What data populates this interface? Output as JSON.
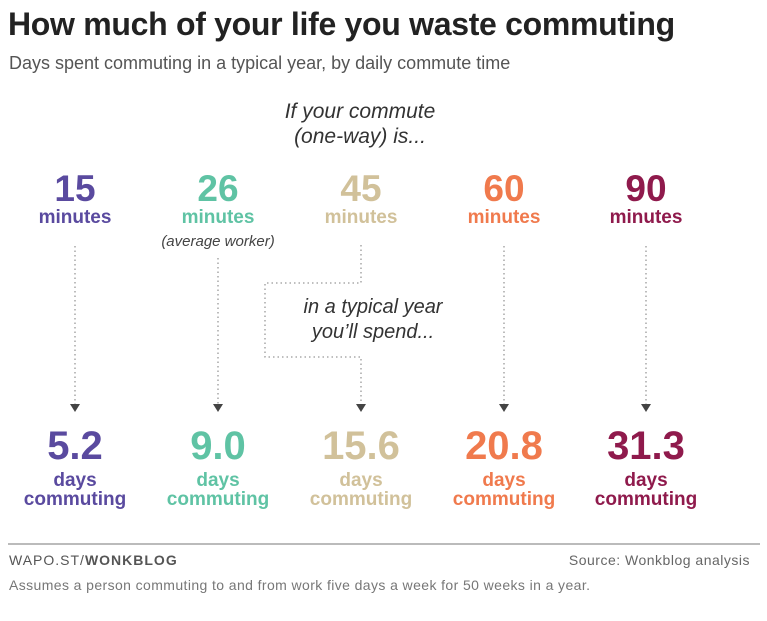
{
  "header": {
    "title": "How much of your life you waste commuting",
    "subtitle": "Days spent commuting in a typical year, by daily commute time"
  },
  "intro": {
    "line1": "If your commute",
    "line2": "(one-way) is..."
  },
  "callout": {
    "line1": "in a typical year",
    "line2": "you’ll spend..."
  },
  "columns": [
    {
      "minutes": "15",
      "minutes_label": "minutes",
      "note": "",
      "days": "5.2",
      "days_label": "days",
      "commuting_label": "commuting",
      "color": "#5a4a9f"
    },
    {
      "minutes": "26",
      "minutes_label": "minutes",
      "note": "(average worker)",
      "days": "9.0",
      "days_label": "days",
      "commuting_label": "commuting",
      "color": "#5fc3a4"
    },
    {
      "minutes": "45",
      "minutes_label": "minutes",
      "note": "",
      "days": "15.6",
      "days_label": "days",
      "commuting_label": "commuting",
      "color": "#d1c19a"
    },
    {
      "minutes": "60",
      "minutes_label": "minutes",
      "note": "",
      "days": "20.8",
      "days_label": "days",
      "commuting_label": "commuting",
      "color": "#f07a4d"
    },
    {
      "minutes": "90",
      "minutes_label": "minutes",
      "note": "",
      "days": "31.3",
      "days_label": "days",
      "commuting_label": "commuting",
      "color": "#8f1a4c"
    }
  ],
  "footer": {
    "credit_prefix": "WAPO.ST/",
    "credit_brand": "WONKBLOG",
    "source": "Source: Wonkblog analysis",
    "footnote": "Assumes a person commuting to and from work five days a week for 50 weeks in a year."
  }
}
